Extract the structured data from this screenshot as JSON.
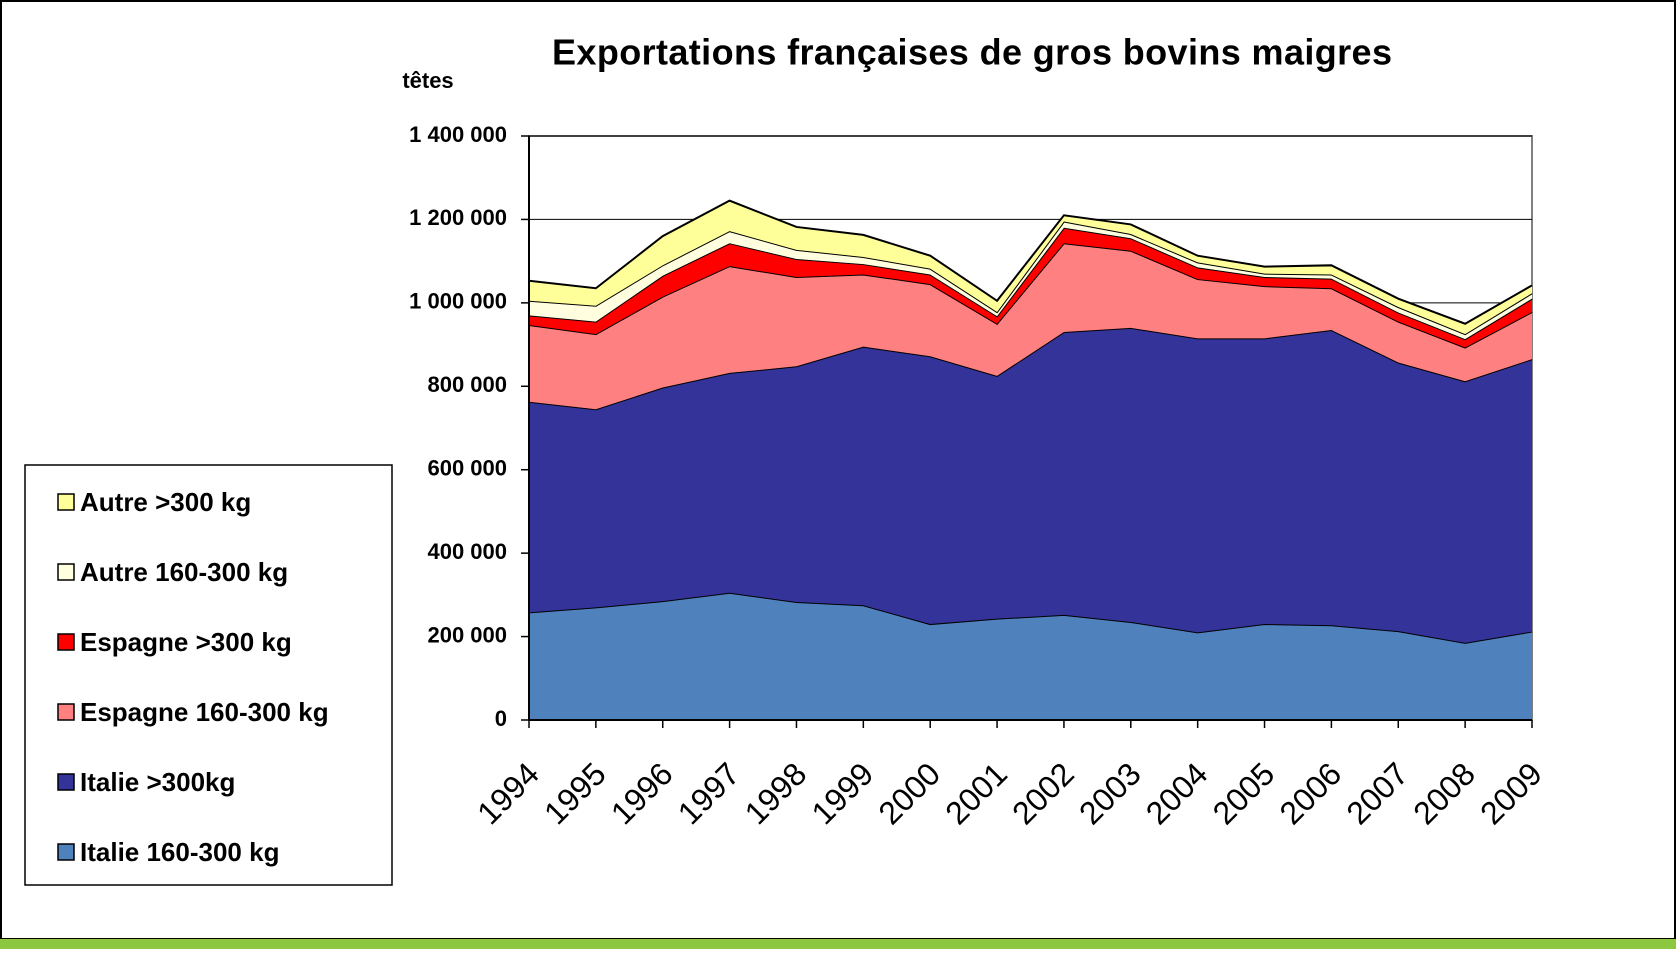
{
  "chart_data": {
    "type": "stacked_area",
    "title": "Exportations françaises de gros bovins maigres",
    "y_axis_label": "têtes",
    "categories": [
      "1994",
      "1995",
      "1996",
      "1997",
      "1998",
      "1999",
      "2000",
      "2001",
      "2002",
      "2003",
      "2004",
      "2005",
      "2006",
      "2007",
      "2008",
      "2009"
    ],
    "series": [
      {
        "name": "Italie 160-300 kg",
        "color": "#4f81bd",
        "values": [
          258000,
          270000,
          285000,
          305000,
          283000,
          275000,
          230000,
          243000,
          252000,
          235000,
          210000,
          230000,
          227000,
          213000,
          185000,
          212000
        ]
      },
      {
        "name": "Italie >300kg",
        "color": "#333399",
        "values": [
          505000,
          475000,
          512000,
          527000,
          565000,
          620000,
          642000,
          582000,
          678000,
          705000,
          705000,
          685000,
          708000,
          644000,
          627000,
          653000
        ]
      },
      {
        "name": "Espagne 160-300 kg",
        "color": "#ff8080",
        "values": [
          184000,
          180000,
          218000,
          256000,
          214000,
          173000,
          173000,
          125000,
          213000,
          185000,
          142000,
          125000,
          100000,
          98000,
          81000,
          113000
        ]
      },
      {
        "name": "Espagne >300 kg",
        "color": "#ff0000",
        "values": [
          23000,
          30000,
          50000,
          55000,
          43000,
          25000,
          23000,
          18000,
          37000,
          30000,
          28000,
          22000,
          23000,
          22000,
          20000,
          32000
        ]
      },
      {
        "name": "Autre 160-300 kg",
        "color": "#ffffe0",
        "values": [
          35000,
          38000,
          25000,
          29000,
          22000,
          17000,
          14000,
          10000,
          15000,
          10000,
          12000,
          8000,
          10000,
          13000,
          12000,
          13000
        ]
      },
      {
        "name": "Autre >300 kg",
        "color": "#ffff99",
        "values": [
          48000,
          42000,
          70000,
          73000,
          55000,
          53000,
          31000,
          27000,
          15000,
          23000,
          16000,
          17000,
          22000,
          20000,
          25000,
          19000
        ]
      }
    ],
    "ylim": [
      0,
      1400000
    ],
    "yticks": [
      0,
      {
        "value": 200000,
        "label": "200 000"
      },
      {
        "value": 400000,
        "label": "400 000"
      },
      {
        "value": 600000,
        "label": "600 000"
      },
      {
        "value": 800000,
        "label": "800 000"
      },
      {
        "value": 1000000,
        "label": "1 000 000"
      },
      {
        "value": 1200000,
        "label": "1 200 000"
      },
      {
        "value": 1400000,
        "label": "1 400 000"
      }
    ],
    "grid": true,
    "legend": "bottom-left"
  }
}
